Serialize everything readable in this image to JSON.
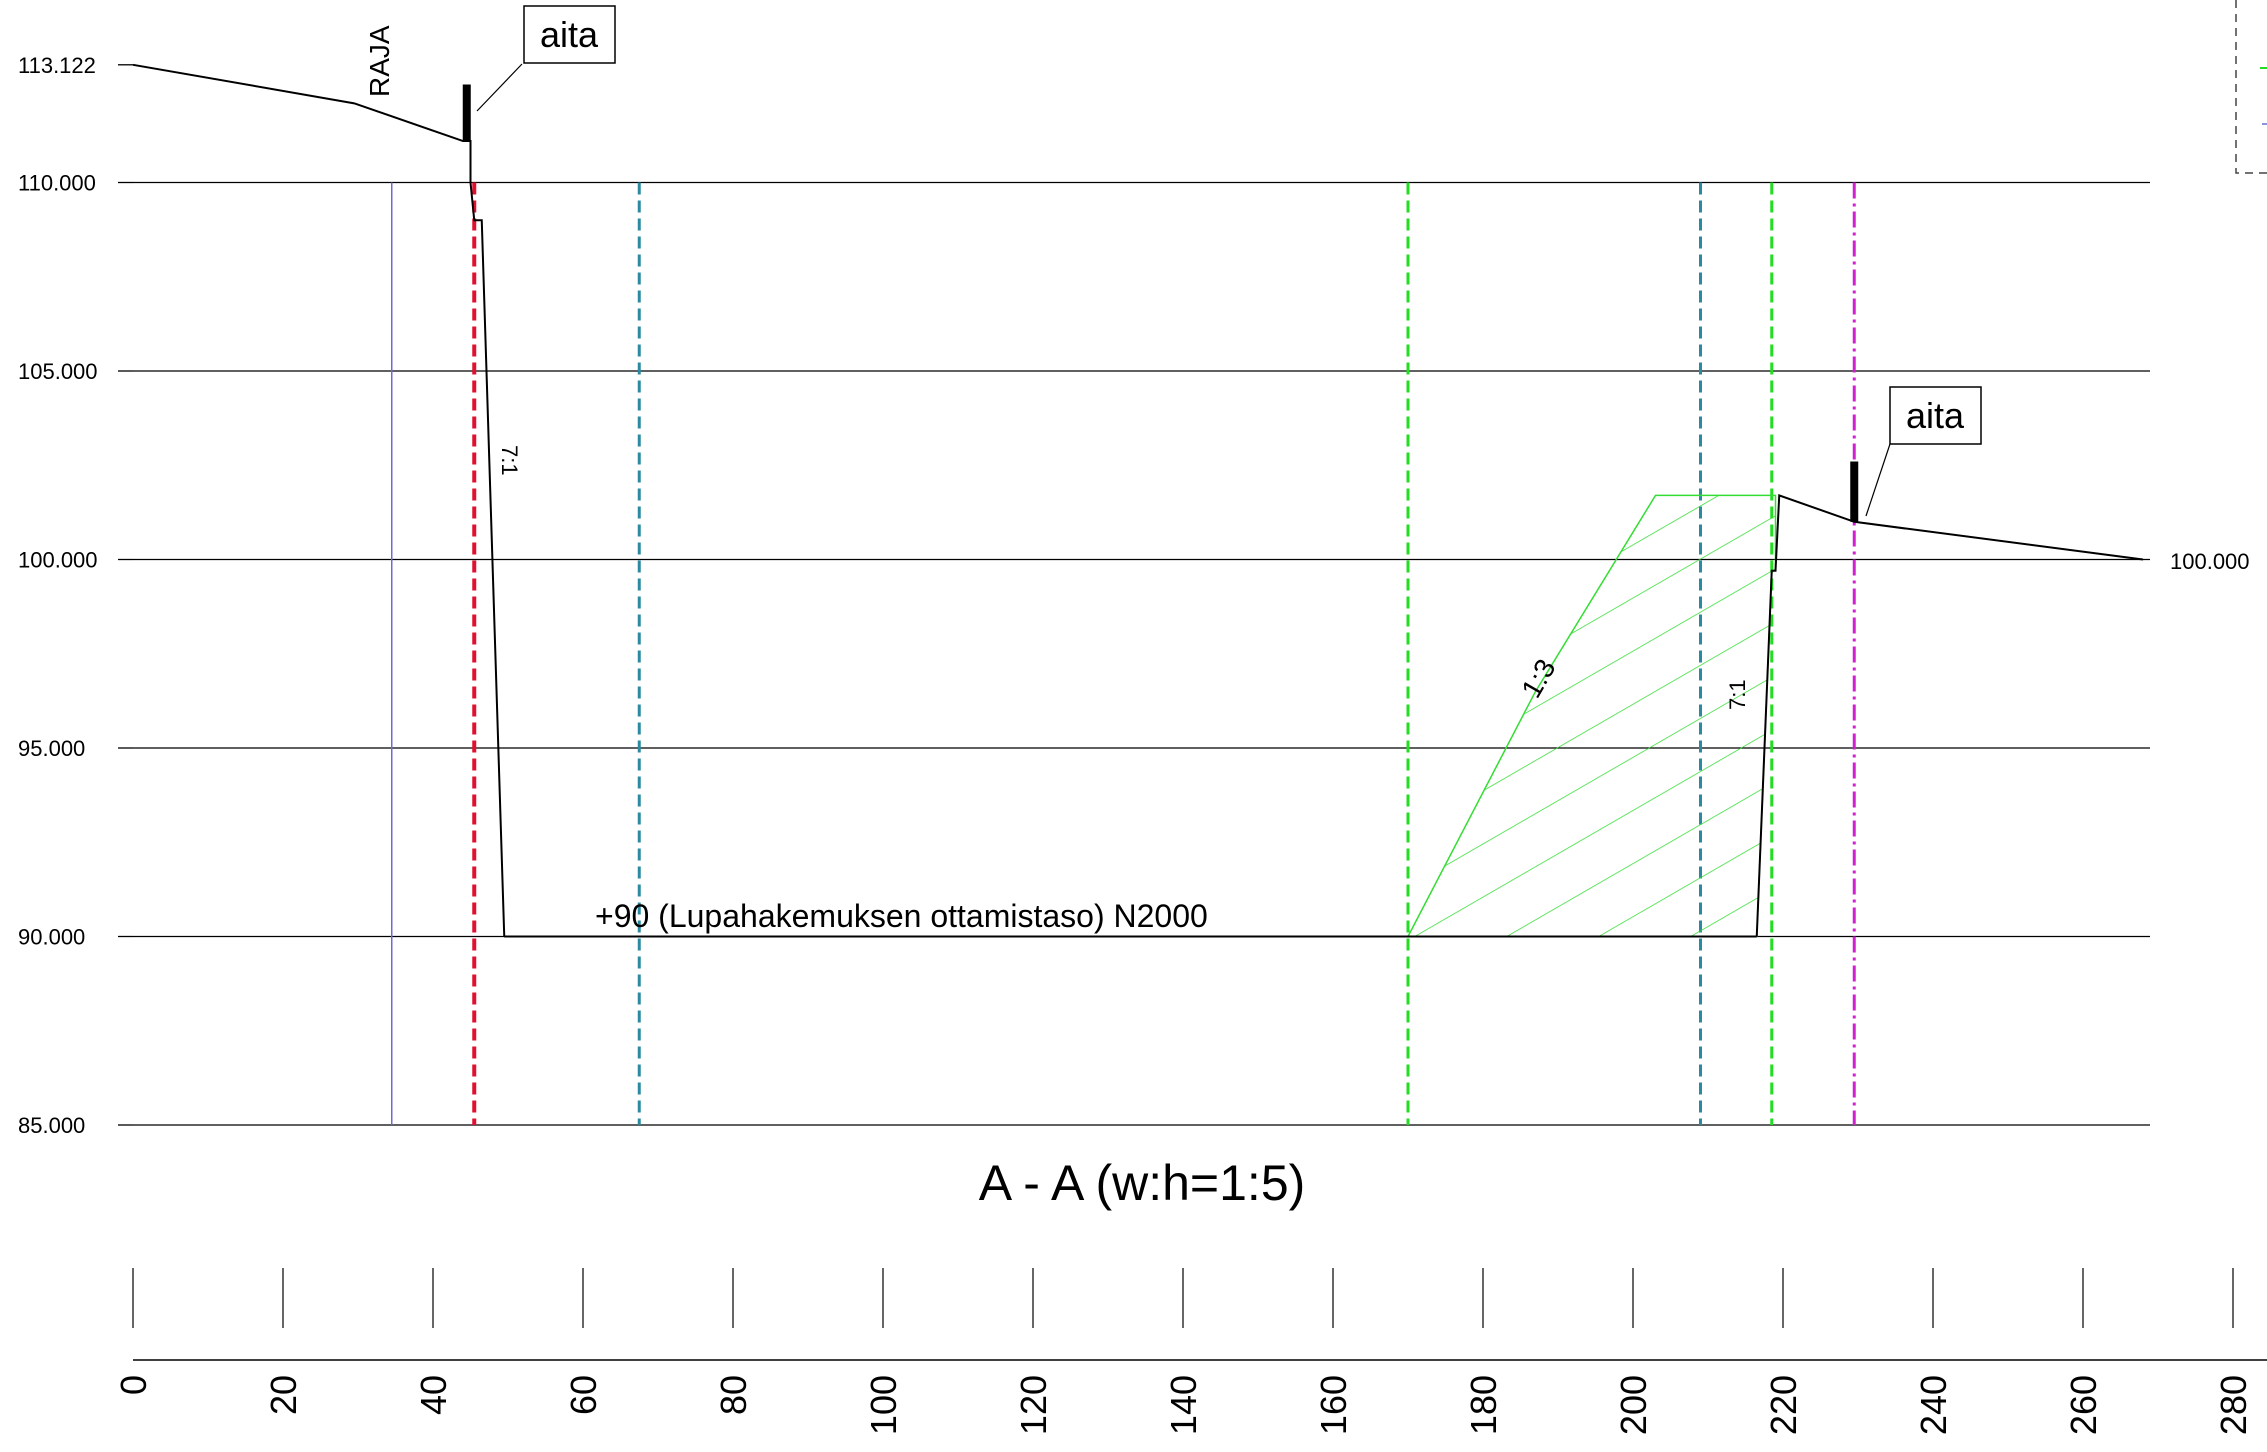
{
  "drawing": {
    "title": "A - A (w:h=1:5)",
    "y_axis": {
      "levels": [
        85,
        90,
        95,
        100,
        105,
        110
      ],
      "labels": [
        "85.000",
        "90.000",
        "95.000",
        "100.000",
        "105.000",
        "110.000"
      ],
      "top_label": "113.122",
      "top_value": 113.122
    },
    "x_axis": {
      "ticks": [
        0,
        20,
        40,
        60,
        80,
        100,
        120,
        140,
        160,
        180,
        200,
        220,
        240,
        260,
        280
      ],
      "labels": [
        "0",
        "20",
        "40",
        "60",
        "80",
        "100",
        "120",
        "140",
        "160",
        "180",
        "200",
        "220",
        "240",
        "260",
        "280"
      ]
    },
    "right_level_label": "100.000",
    "raja_label": "RAJA",
    "fence_label": "aita",
    "left_slope_label": "7:1",
    "right_slope_label": "7:1",
    "fill_slope_label": "1:3",
    "extraction_label": "+90 (Lupahakemuksen ottamistaso) N2000",
    "ground_left": [
      [
        0,
        113.122
      ],
      [
        29.5,
        112.1
      ],
      [
        44,
        111.1
      ],
      [
        45,
        111.1
      ],
      [
        45,
        110
      ],
      [
        45.5,
        109
      ],
      [
        46.5,
        109
      ],
      [
        49.5,
        90
      ]
    ],
    "ground_right": [
      [
        216.5,
        90
      ],
      [
        218.5,
        99.7
      ],
      [
        219,
        99.7
      ],
      [
        219.5,
        101.7
      ],
      [
        229.5,
        101.0
      ],
      [
        268,
        100
      ]
    ],
    "extraction_floor": [
      [
        49.5,
        90
      ],
      [
        216.5,
        90
      ]
    ],
    "fill_area": [
      [
        170,
        90
      ],
      [
        187,
        96.5
      ],
      [
        203,
        101.7
      ],
      [
        219,
        101.7
      ],
      [
        219,
        99.7
      ],
      [
        218.5,
        99.7
      ],
      [
        216.5,
        90
      ]
    ],
    "fences": [
      {
        "x": 44.5,
        "y_bottom": 111.1,
        "y_top": 112.6
      },
      {
        "x": 229.5,
        "y_bottom": 101.0,
        "y_top": 102.6
      }
    ],
    "vertical_lines": [
      {
        "x": 34.5,
        "style": "solid",
        "color": "#6b6bd6"
      },
      {
        "x": 45.5,
        "style": "dashed",
        "color": "#e01030"
      },
      {
        "x": 67.5,
        "style": "dashed",
        "color": "#2b8aa0"
      },
      {
        "x": 170,
        "style": "dashed",
        "color": "#22dd22"
      },
      {
        "x": 209,
        "style": "dashed",
        "color": "#2b8aa0"
      },
      {
        "x": 218.5,
        "style": "dashed",
        "color": "#22dd22"
      },
      {
        "x": 229.5,
        "style": "dashdot",
        "color": "#d020d0"
      }
    ],
    "colors": {
      "fill_hatch": "#33dd33",
      "ground": "#000000",
      "grid": "#000000"
    }
  }
}
